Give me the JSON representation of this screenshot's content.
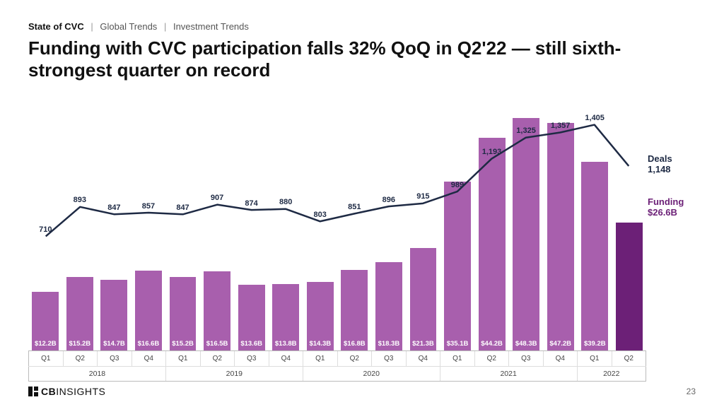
{
  "breadcrumb": {
    "a": "State of CVC",
    "b": "Global Trends",
    "c": "Investment Trends"
  },
  "title": "Funding with CVC participation falls 32% QoQ in Q2'22 — still sixth-strongest quarter on record",
  "footer": {
    "logo_bold": "CB",
    "logo_thin": "INSIGHTS",
    "page": "23"
  },
  "endlabels": {
    "deals": "Deals\n1,148",
    "funding": "Funding\n$26.6B"
  },
  "chart": {
    "type": "bar+line",
    "bar_color": "#a85fad",
    "bar_highlight_color": "#6c2077",
    "line_color": "#1e2a44",
    "line_width": 2.5,
    "background_color": "#ffffff",
    "funding_max": 50,
    "deals_max": 1500,
    "quarters": [
      "Q1",
      "Q2",
      "Q3",
      "Q4",
      "Q1",
      "Q2",
      "Q3",
      "Q4",
      "Q1",
      "Q2",
      "Q3",
      "Q4",
      "Q1",
      "Q2",
      "Q3",
      "Q4",
      "Q1",
      "Q2"
    ],
    "years": [
      {
        "label": "2018",
        "span": 4
      },
      {
        "label": "2019",
        "span": 4
      },
      {
        "label": "2020",
        "span": 4
      },
      {
        "label": "2021",
        "span": 4
      },
      {
        "label": "2022",
        "span": 2
      }
    ],
    "funding_values": [
      12.2,
      15.2,
      14.7,
      16.6,
      15.2,
      16.5,
      13.6,
      13.8,
      14.3,
      16.8,
      18.3,
      21.3,
      35.1,
      44.2,
      48.3,
      47.2,
      39.2,
      26.6
    ],
    "funding_labels": [
      "$12.2B",
      "$15.2B",
      "$14.7B",
      "$16.6B",
      "$15.2B",
      "$16.5B",
      "$13.6B",
      "$13.8B",
      "$14.3B",
      "$16.8B",
      "$18.3B",
      "$21.3B",
      "$35.1B",
      "$44.2B",
      "$48.3B",
      "$47.2B",
      "$39.2B",
      "$26.6B"
    ],
    "deals_values": [
      710,
      893,
      847,
      857,
      847,
      907,
      874,
      880,
      803,
      851,
      896,
      915,
      989,
      1193,
      1325,
      1357,
      1405,
      1148
    ],
    "deals_labels": [
      "710",
      "893",
      "847",
      "857",
      "847",
      "907",
      "874",
      "880",
      "803",
      "851",
      "896",
      "915",
      "989",
      "1,193",
      "1,325",
      "1,357",
      "1,405",
      "1,148"
    ],
    "highlight_index": 17
  }
}
